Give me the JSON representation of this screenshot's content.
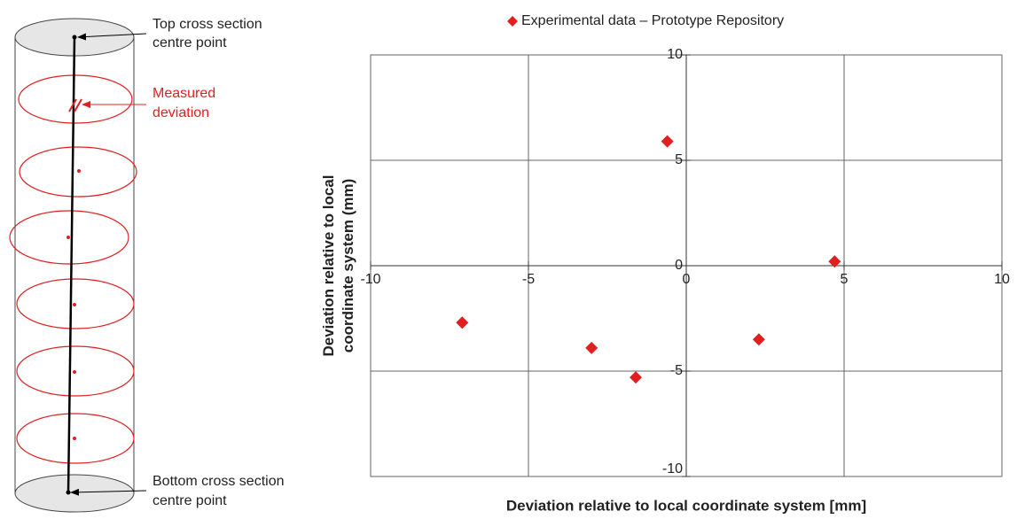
{
  "diagram": {
    "top_label": [
      "Top cross section",
      "centre point"
    ],
    "measured_label": [
      "Measured",
      "deviation"
    ],
    "bottom_label": [
      "Bottom cross section",
      "centre point"
    ]
  },
  "chart_data": {
    "type": "scatter",
    "xlabel": "Deviation relative to local coordinate system [mm]",
    "ylabel": [
      "Deviation relative to local",
      "coordinate system (mm)"
    ],
    "series": [
      {
        "name": "Experimental data – Prototype Repository",
        "color": "#e02020",
        "x": [
          -0.6,
          4.7,
          -7.1,
          -3.0,
          -1.6,
          2.3
        ],
        "values": [
          5.9,
          0.2,
          -2.7,
          -3.9,
          -5.3,
          -3.5
        ]
      }
    ],
    "xlim": [
      -10,
      10
    ],
    "ylim": [
      -10,
      10
    ],
    "xticks": [
      -10,
      -5,
      0,
      5,
      10
    ],
    "yticks": [
      -10,
      -5,
      0,
      5,
      10
    ],
    "grid": true,
    "legend": "top"
  }
}
